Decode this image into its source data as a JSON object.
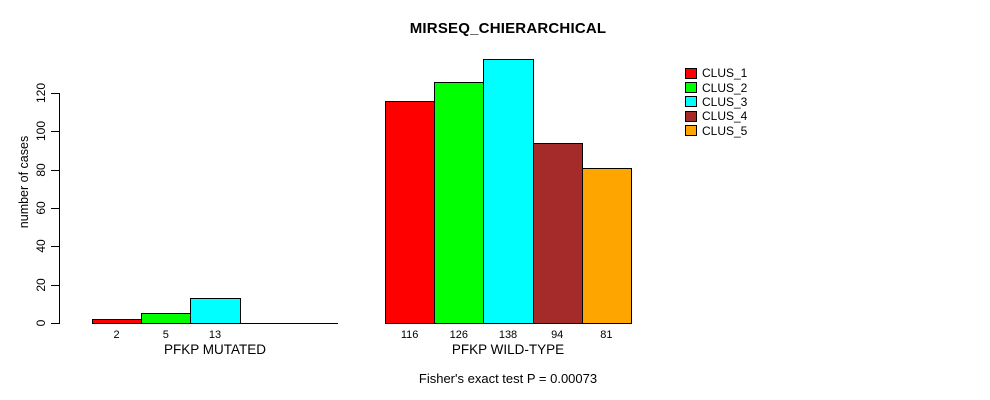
{
  "chart_data": {
    "type": "bar",
    "title": "MIRSEQ_CHIERARCHICAL",
    "ylabel": "number of cases",
    "xlabel": "",
    "ylim": [
      0,
      140
    ],
    "yticks": [
      0,
      20,
      40,
      60,
      80,
      100,
      120
    ],
    "grid": false,
    "legend_position": "top-right",
    "categories": [
      "PFKP MUTATED",
      "PFKP WILD-TYPE"
    ],
    "series": [
      {
        "name": "CLUS_1",
        "color": "#FF0000",
        "values": [
          2,
          116
        ]
      },
      {
        "name": "CLUS_2",
        "color": "#00FF00",
        "values": [
          5,
          126
        ]
      },
      {
        "name": "CLUS_3",
        "color": "#00FFFF",
        "values": [
          13,
          138
        ]
      },
      {
        "name": "CLUS_4",
        "color": "#A52A2A",
        "values": [
          0,
          94
        ]
      },
      {
        "name": "CLUS_5",
        "color": "#FFA500",
        "values": [
          0,
          81
        ]
      }
    ],
    "bar_value_labels": [
      [
        "2",
        "5",
        "13",
        "",
        ""
      ],
      [
        "116",
        "126",
        "138",
        "94",
        "81"
      ]
    ],
    "caption": "Fisher's exact test P = 0.00073"
  }
}
